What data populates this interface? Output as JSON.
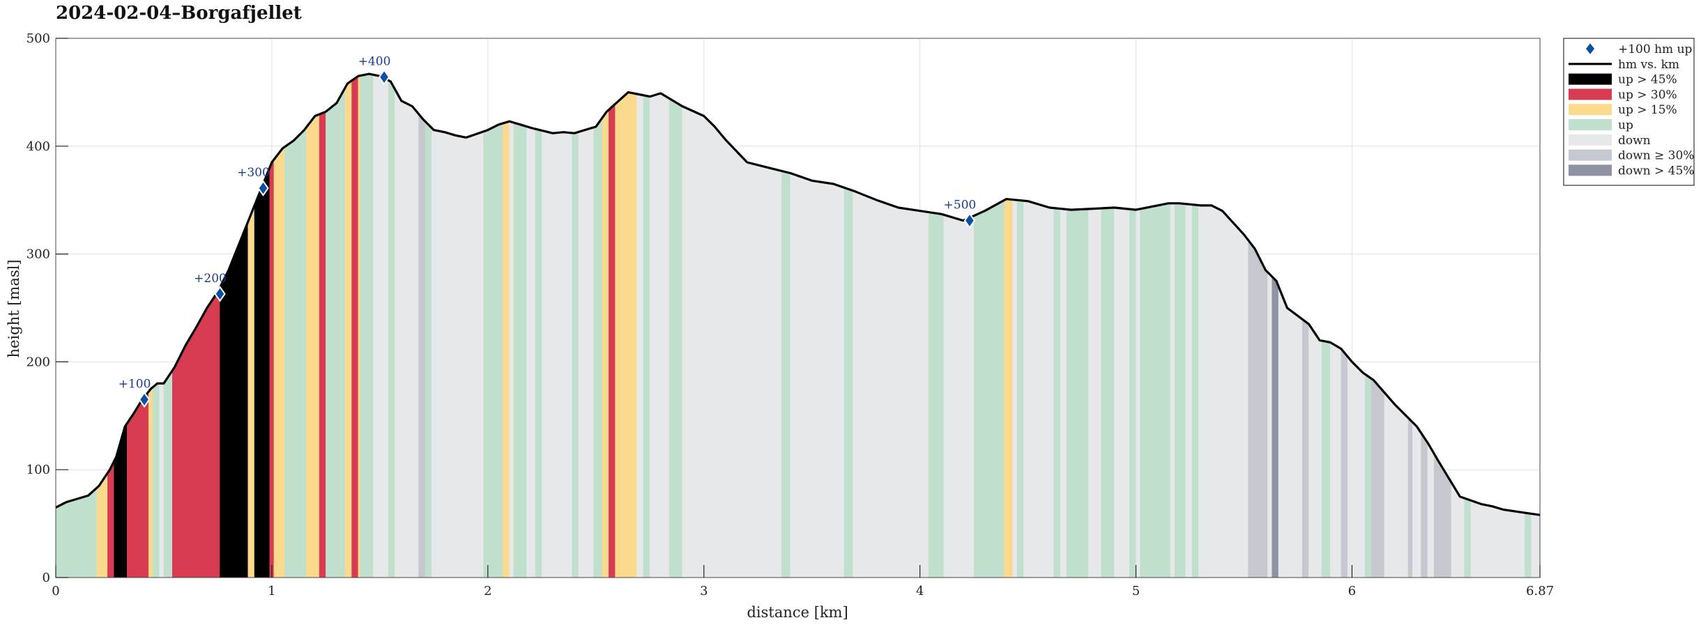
{
  "chart_data": {
    "type": "area",
    "title": "2024-02-04–Borgafjellet",
    "xlabel": "distance [km]",
    "ylabel": "height [masl]",
    "xlim": [
      0,
      6.87
    ],
    "ylim": [
      0,
      500
    ],
    "xticks": [
      "0",
      "1",
      "2",
      "3",
      "4",
      "5",
      "6",
      "6.87"
    ],
    "xtick_values": [
      0,
      1,
      2,
      3,
      4,
      5,
      6,
      6.87
    ],
    "yticks": [
      0,
      100,
      200,
      300,
      400,
      500
    ],
    "grid": true,
    "legend_position": "outside-top-right",
    "legend": [
      {
        "key": "marker",
        "label": "+100 hm up",
        "color": "#0a4fa6"
      },
      {
        "key": "line",
        "label": "hm vs. km",
        "color": "#000000"
      },
      {
        "key": "black",
        "label": "up > 45%",
        "color": "#000000"
      },
      {
        "key": "red",
        "label": "up > 30%",
        "color": "#d83c52"
      },
      {
        "key": "yellow",
        "label": "up > 15%",
        "color": "#fcda8d"
      },
      {
        "key": "green",
        "label": "up",
        "color": "#c0dfcc"
      },
      {
        "key": "down",
        "label": "down",
        "color": "#e7e8ea"
      },
      {
        "key": "down30",
        "label": "down ≥ 30%",
        "color": "#c6c8d0"
      },
      {
        "key": "down45",
        "label": "down > 45%",
        "color": "#8e93a1"
      }
    ],
    "profile": {
      "x": [
        0,
        0.05,
        0.1,
        0.15,
        0.2,
        0.25,
        0.28,
        0.32,
        0.36,
        0.4,
        0.44,
        0.47,
        0.5,
        0.55,
        0.6,
        0.65,
        0.7,
        0.75,
        0.8,
        0.85,
        0.9,
        0.95,
        1.0,
        1.05,
        1.1,
        1.15,
        1.2,
        1.25,
        1.3,
        1.35,
        1.4,
        1.45,
        1.5,
        1.55,
        1.6,
        1.65,
        1.7,
        1.75,
        1.8,
        1.85,
        1.9,
        2.0,
        2.05,
        2.1,
        2.15,
        2.2,
        2.3,
        2.35,
        2.4,
        2.5,
        2.55,
        2.6,
        2.65,
        2.7,
        2.75,
        2.8,
        2.9,
        3.0,
        3.05,
        3.1,
        3.2,
        3.3,
        3.4,
        3.5,
        3.6,
        3.7,
        3.8,
        3.9,
        4.0,
        4.1,
        4.2,
        4.3,
        4.4,
        4.5,
        4.6,
        4.7,
        4.8,
        4.9,
        5.0,
        5.1,
        5.15,
        5.2,
        5.3,
        5.35,
        5.4,
        5.5,
        5.55,
        5.6,
        5.65,
        5.7,
        5.8,
        5.85,
        5.9,
        5.95,
        6.0,
        6.05,
        6.1,
        6.2,
        6.3,
        6.35,
        6.4,
        6.5,
        6.6,
        6.65,
        6.7,
        6.8,
        6.87
      ],
      "y": [
        65,
        70,
        73,
        76,
        85,
        100,
        112,
        140,
        152,
        165,
        175,
        180,
        180,
        195,
        215,
        232,
        250,
        265,
        285,
        310,
        335,
        360,
        385,
        398,
        405,
        415,
        428,
        432,
        440,
        458,
        465,
        467,
        465,
        460,
        442,
        437,
        425,
        415,
        413,
        410,
        408,
        415,
        420,
        423,
        420,
        417,
        412,
        413,
        412,
        418,
        432,
        441,
        450,
        448,
        446,
        449,
        437,
        428,
        418,
        406,
        385,
        380,
        375,
        368,
        365,
        358,
        350,
        343,
        340,
        337,
        331,
        340,
        351,
        349,
        343,
        341,
        342,
        343,
        341,
        345,
        347,
        347,
        345,
        345,
        340,
        318,
        305,
        285,
        275,
        250,
        235,
        220,
        218,
        212,
        200,
        190,
        183,
        160,
        140,
        125,
        108,
        75,
        68,
        66,
        63,
        60,
        58
      ]
    },
    "markers": [
      {
        "x": 0.41,
        "y": 165,
        "label": "+100"
      },
      {
        "x": 0.76,
        "y": 263,
        "label": "+200"
      },
      {
        "x": 0.96,
        "y": 361,
        "label": "+300"
      },
      {
        "x": 1.52,
        "y": 464,
        "label": "+400"
      },
      {
        "x": 4.23,
        "y": 331,
        "label": "+500"
      }
    ],
    "segments": [
      {
        "x0": 0,
        "x1": 0.19,
        "c": "green"
      },
      {
        "x0": 0.19,
        "x1": 0.24,
        "c": "yellow"
      },
      {
        "x0": 0.24,
        "x1": 0.27,
        "c": "red"
      },
      {
        "x0": 0.27,
        "x1": 0.3,
        "c": "black"
      },
      {
        "x0": 0.3,
        "x1": 0.33,
        "c": "black"
      },
      {
        "x0": 0.33,
        "x1": 0.43,
        "c": "red"
      },
      {
        "x0": 0.43,
        "x1": 0.45,
        "c": "yellow"
      },
      {
        "x0": 0.45,
        "x1": 0.48,
        "c": "green"
      },
      {
        "x0": 0.48,
        "x1": 0.5,
        "c": "down"
      },
      {
        "x0": 0.5,
        "x1": 0.54,
        "c": "green"
      },
      {
        "x0": 0.54,
        "x1": 0.76,
        "c": "red"
      },
      {
        "x0": 0.76,
        "x1": 0.89,
        "c": "black"
      },
      {
        "x0": 0.89,
        "x1": 0.92,
        "c": "yellow"
      },
      {
        "x0": 0.92,
        "x1": 0.99,
        "c": "black"
      },
      {
        "x0": 0.99,
        "x1": 1.01,
        "c": "red"
      },
      {
        "x0": 1.01,
        "x1": 1.06,
        "c": "yellow"
      },
      {
        "x0": 1.06,
        "x1": 1.16,
        "c": "green"
      },
      {
        "x0": 1.16,
        "x1": 1.22,
        "c": "yellow"
      },
      {
        "x0": 1.22,
        "x1": 1.25,
        "c": "red"
      },
      {
        "x0": 1.25,
        "x1": 1.34,
        "c": "green"
      },
      {
        "x0": 1.34,
        "x1": 1.37,
        "c": "yellow"
      },
      {
        "x0": 1.37,
        "x1": 1.4,
        "c": "red"
      },
      {
        "x0": 1.4,
        "x1": 1.41,
        "c": "yellow"
      },
      {
        "x0": 1.41,
        "x1": 1.47,
        "c": "green"
      },
      {
        "x0": 1.47,
        "x1": 1.54,
        "c": "down"
      },
      {
        "x0": 1.54,
        "x1": 1.57,
        "c": "green"
      },
      {
        "x0": 1.57,
        "x1": 1.68,
        "c": "down"
      },
      {
        "x0": 1.68,
        "x1": 1.71,
        "c": "down30"
      },
      {
        "x0": 1.71,
        "x1": 1.74,
        "c": "green"
      },
      {
        "x0": 1.74,
        "x1": 1.98,
        "c": "down"
      },
      {
        "x0": 1.98,
        "x1": 2.07,
        "c": "green"
      },
      {
        "x0": 2.07,
        "x1": 2.1,
        "c": "yellow"
      },
      {
        "x0": 2.1,
        "x1": 2.12,
        "c": "down"
      },
      {
        "x0": 2.12,
        "x1": 2.18,
        "c": "green"
      },
      {
        "x0": 2.18,
        "x1": 2.22,
        "c": "down"
      },
      {
        "x0": 2.22,
        "x1": 2.25,
        "c": "green"
      },
      {
        "x0": 2.25,
        "x1": 2.39,
        "c": "down"
      },
      {
        "x0": 2.39,
        "x1": 2.42,
        "c": "green"
      },
      {
        "x0": 2.42,
        "x1": 2.49,
        "c": "down"
      },
      {
        "x0": 2.49,
        "x1": 2.53,
        "c": "green"
      },
      {
        "x0": 2.53,
        "x1": 2.56,
        "c": "yellow"
      },
      {
        "x0": 2.56,
        "x1": 2.59,
        "c": "red"
      },
      {
        "x0": 2.59,
        "x1": 2.61,
        "c": "yellow"
      },
      {
        "x0": 2.61,
        "x1": 2.69,
        "c": "yellow"
      },
      {
        "x0": 2.69,
        "x1": 2.72,
        "c": "down"
      },
      {
        "x0": 2.72,
        "x1": 2.75,
        "c": "green"
      },
      {
        "x0": 2.75,
        "x1": 2.84,
        "c": "down"
      },
      {
        "x0": 2.84,
        "x1": 2.9,
        "c": "green"
      },
      {
        "x0": 2.9,
        "x1": 3.36,
        "c": "down"
      },
      {
        "x0": 3.36,
        "x1": 3.4,
        "c": "green"
      },
      {
        "x0": 3.4,
        "x1": 3.65,
        "c": "down"
      },
      {
        "x0": 3.65,
        "x1": 3.69,
        "c": "green"
      },
      {
        "x0": 3.69,
        "x1": 4.04,
        "c": "down"
      },
      {
        "x0": 4.04,
        "x1": 4.11,
        "c": "green"
      },
      {
        "x0": 4.11,
        "x1": 4.25,
        "c": "down"
      },
      {
        "x0": 4.25,
        "x1": 4.39,
        "c": "green"
      },
      {
        "x0": 4.39,
        "x1": 4.43,
        "c": "yellow"
      },
      {
        "x0": 4.43,
        "x1": 4.45,
        "c": "down"
      },
      {
        "x0": 4.45,
        "x1": 4.48,
        "c": "green"
      },
      {
        "x0": 4.48,
        "x1": 4.62,
        "c": "down"
      },
      {
        "x0": 4.62,
        "x1": 4.65,
        "c": "green"
      },
      {
        "x0": 4.65,
        "x1": 4.68,
        "c": "down"
      },
      {
        "x0": 4.68,
        "x1": 4.78,
        "c": "green"
      },
      {
        "x0": 4.78,
        "x1": 4.84,
        "c": "down"
      },
      {
        "x0": 4.84,
        "x1": 4.9,
        "c": "green"
      },
      {
        "x0": 4.9,
        "x1": 4.97,
        "c": "down"
      },
      {
        "x0": 4.97,
        "x1": 5.0,
        "c": "green"
      },
      {
        "x0": 5.0,
        "x1": 5.02,
        "c": "down"
      },
      {
        "x0": 5.02,
        "x1": 5.16,
        "c": "green"
      },
      {
        "x0": 5.16,
        "x1": 5.18,
        "c": "down"
      },
      {
        "x0": 5.18,
        "x1": 5.23,
        "c": "green"
      },
      {
        "x0": 5.23,
        "x1": 5.26,
        "c": "down"
      },
      {
        "x0": 5.26,
        "x1": 5.29,
        "c": "green"
      },
      {
        "x0": 5.29,
        "x1": 5.52,
        "c": "down"
      },
      {
        "x0": 5.52,
        "x1": 5.61,
        "c": "down30"
      },
      {
        "x0": 5.61,
        "x1": 5.63,
        "c": "down"
      },
      {
        "x0": 5.63,
        "x1": 5.66,
        "c": "down45"
      },
      {
        "x0": 5.66,
        "x1": 5.77,
        "c": "down"
      },
      {
        "x0": 5.77,
        "x1": 5.8,
        "c": "down30"
      },
      {
        "x0": 5.8,
        "x1": 5.86,
        "c": "down"
      },
      {
        "x0": 5.86,
        "x1": 5.9,
        "c": "green"
      },
      {
        "x0": 5.9,
        "x1": 5.95,
        "c": "down"
      },
      {
        "x0": 5.95,
        "x1": 5.98,
        "c": "down30"
      },
      {
        "x0": 5.98,
        "x1": 6.06,
        "c": "down"
      },
      {
        "x0": 6.06,
        "x1": 6.09,
        "c": "green"
      },
      {
        "x0": 6.09,
        "x1": 6.15,
        "c": "down30"
      },
      {
        "x0": 6.15,
        "x1": 6.26,
        "c": "down"
      },
      {
        "x0": 6.26,
        "x1": 6.28,
        "c": "down30"
      },
      {
        "x0": 6.28,
        "x1": 6.32,
        "c": "down"
      },
      {
        "x0": 6.32,
        "x1": 6.35,
        "c": "down30"
      },
      {
        "x0": 6.35,
        "x1": 6.38,
        "c": "down"
      },
      {
        "x0": 6.38,
        "x1": 6.46,
        "c": "down30"
      },
      {
        "x0": 6.46,
        "x1": 6.52,
        "c": "down"
      },
      {
        "x0": 6.52,
        "x1": 6.55,
        "c": "green"
      },
      {
        "x0": 6.55,
        "x1": 6.8,
        "c": "down"
      },
      {
        "x0": 6.8,
        "x1": 6.83,
        "c": "green"
      },
      {
        "x0": 6.83,
        "x1": 6.87,
        "c": "down"
      }
    ]
  }
}
